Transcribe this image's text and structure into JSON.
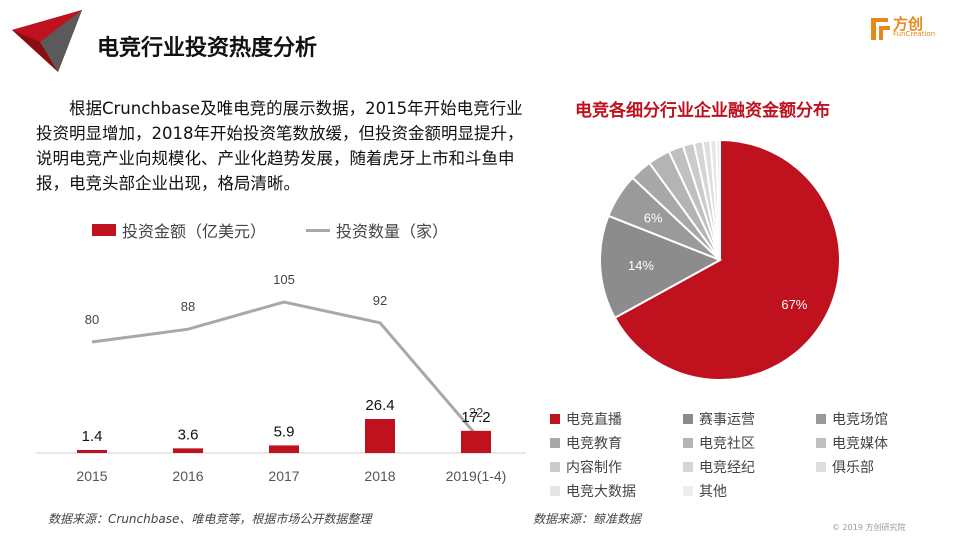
{
  "header": {
    "title": "电竞行业投资热度分析",
    "brand_name": "方创",
    "brand_sub": "FunCreation"
  },
  "intro_text": "根据Crunchbase及唯电竞的展示数据，2015年开始电竞行业投资明显增加，2018年开始投资笔数放缓，但投资金额明显提升，说明电竞产业向规模化、产业化趋势发展，随着虎牙上市和斗鱼申报，电竞头部企业出现，格局清晰。",
  "colors": {
    "accent": "#c0111f",
    "line": "#a8a8a8",
    "brand": "#e8881a"
  },
  "chart_data": [
    {
      "type": "bar",
      "categories": [
        "2015",
        "2016",
        "2017",
        "2018",
        "2019(1-4)"
      ],
      "series": [
        {
          "name": "投资金额（亿美元）",
          "type": "bar",
          "values": [
            1.4,
            3.6,
            5.9,
            26.4,
            17.2
          ],
          "color": "#c0111f"
        },
        {
          "name": "投资数量（家）",
          "type": "line",
          "values": [
            80,
            88,
            105,
            92,
            22
          ],
          "color": "#a8a8a8"
        }
      ],
      "bar_value_labels": [
        "1.4",
        "3.6",
        "5.9",
        "26.4",
        "17.2"
      ],
      "line_value_labels": [
        "80",
        "88",
        "105",
        "92",
        "22"
      ],
      "grid": false,
      "legend_position": "top"
    },
    {
      "type": "pie",
      "title": "电竞各细分行业企业融资金额分布",
      "labels": [
        "电竞直播",
        "赛事运营",
        "电竞场馆",
        "电竞教育",
        "电竞社区",
        "电竞媒体",
        "内容制作",
        "电竞经纪",
        "俱乐部",
        "电竞大数据",
        "其他"
      ],
      "values": [
        67,
        14,
        6,
        3,
        3,
        2,
        1.5,
        1.2,
        1,
        0.8,
        0.5
      ],
      "slice_labels": [
        "67%",
        "14%",
        "6%",
        "",
        "",
        "",
        "",
        "",
        "",
        "",
        ""
      ],
      "colors": [
        "#c0111f",
        "#8c8c8c",
        "#9a9a9a",
        "#a8a8a8",
        "#b4b4b4",
        "#c0c0c0",
        "#cbcbcb",
        "#d5d5d5",
        "#dedede",
        "#e6e6e6",
        "#eeeeee"
      ],
      "legend_position": "bottom"
    }
  ],
  "source_left": "数据来源：Crunchbase、唯电竞等，根据市场公开数据整理",
  "source_right": "数据来源：鲸准数据",
  "copyright": "© 2019 方创研究院"
}
